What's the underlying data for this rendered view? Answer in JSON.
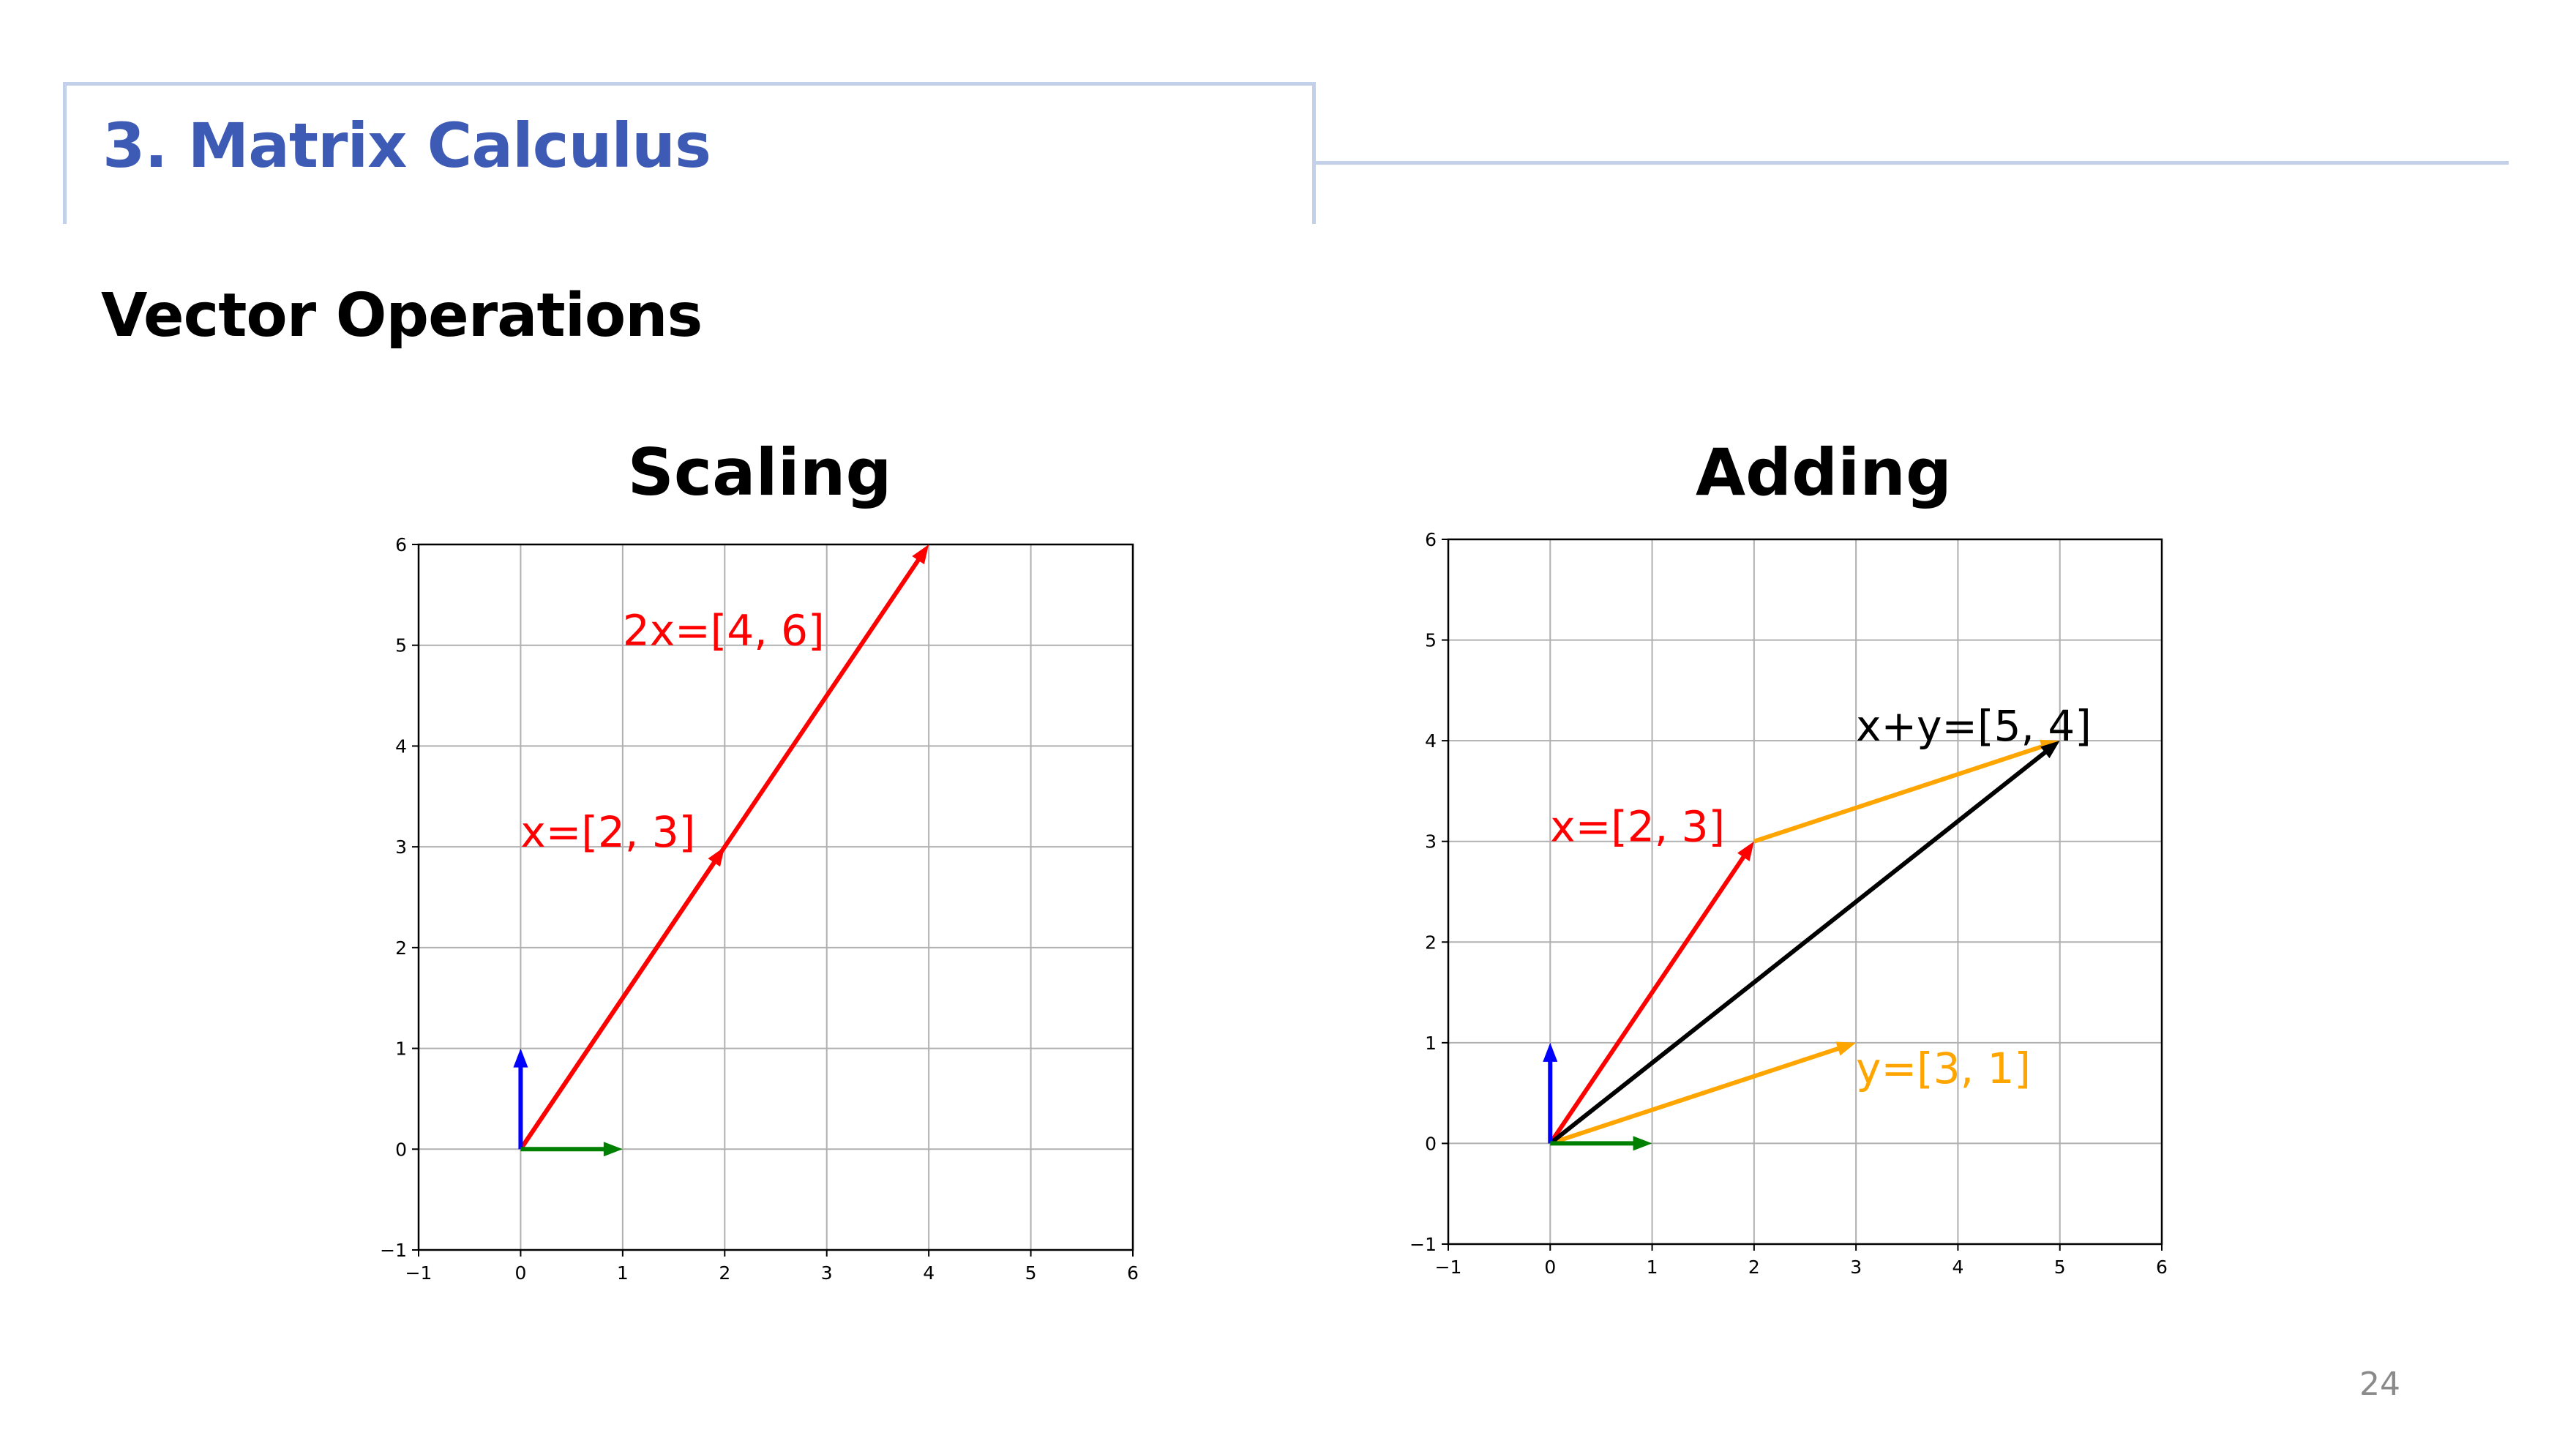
{
  "header": {
    "section_title": "3. Matrix Calculus",
    "subtitle": "Vector Operations",
    "page_number": "24"
  },
  "colors": {
    "accent": "#3d5bb5",
    "frame": "#c3d0ea",
    "red": "#ff0000",
    "blue": "#0000ff",
    "green": "#008000",
    "orange": "#ffa500",
    "black": "#000000",
    "grid": "#b0b0b0"
  },
  "chart_data": [
    {
      "type": "quiver",
      "title": "Scaling",
      "xlim": [
        -1,
        6
      ],
      "ylim": [
        -1,
        6
      ],
      "xticks": [
        "−1",
        "0",
        "1",
        "2",
        "3",
        "4",
        "5",
        "6"
      ],
      "yticks": [
        "−1",
        "0",
        "1",
        "2",
        "3",
        "4",
        "5",
        "6"
      ],
      "grid": true,
      "vectors": [
        {
          "from": [
            0,
            0
          ],
          "to": [
            4,
            6
          ],
          "color": "red"
        },
        {
          "from": [
            0,
            0
          ],
          "to": [
            2,
            3
          ],
          "color": "red"
        },
        {
          "from": [
            0,
            0
          ],
          "to": [
            0,
            1
          ],
          "color": "blue"
        },
        {
          "from": [
            0,
            0
          ],
          "to": [
            1,
            0
          ],
          "color": "green"
        }
      ],
      "annotations": [
        {
          "text": "2x=[4, 6]",
          "at": [
            1,
            5
          ],
          "color": "red"
        },
        {
          "text": "x=[2, 3]",
          "at": [
            0,
            3
          ],
          "color": "red"
        }
      ]
    },
    {
      "type": "quiver",
      "title": "Adding",
      "xlim": [
        -1,
        6
      ],
      "ylim": [
        -1,
        6
      ],
      "xticks": [
        "−1",
        "0",
        "1",
        "2",
        "3",
        "4",
        "5",
        "6"
      ],
      "yticks": [
        "−1",
        "0",
        "1",
        "2",
        "3",
        "4",
        "5",
        "6"
      ],
      "grid": true,
      "vectors": [
        {
          "from": [
            0,
            0
          ],
          "to": [
            2,
            3
          ],
          "color": "red"
        },
        {
          "from": [
            2,
            3
          ],
          "to": [
            5,
            4
          ],
          "color": "orange"
        },
        {
          "from": [
            0,
            0
          ],
          "to": [
            3,
            1
          ],
          "color": "orange"
        },
        {
          "from": [
            0,
            0
          ],
          "to": [
            5,
            4
          ],
          "color": "black"
        },
        {
          "from": [
            0,
            0
          ],
          "to": [
            0,
            1
          ],
          "color": "blue"
        },
        {
          "from": [
            0,
            0
          ],
          "to": [
            1,
            0
          ],
          "color": "green"
        }
      ],
      "annotations": [
        {
          "text": "x+y=[5, 4]",
          "at": [
            3,
            4
          ],
          "color": "black"
        },
        {
          "text": "x=[2, 3]",
          "at": [
            0,
            3
          ],
          "color": "red"
        },
        {
          "text": "y=[3, 1]",
          "at": [
            3,
            0.6
          ],
          "color": "orange"
        }
      ]
    }
  ]
}
